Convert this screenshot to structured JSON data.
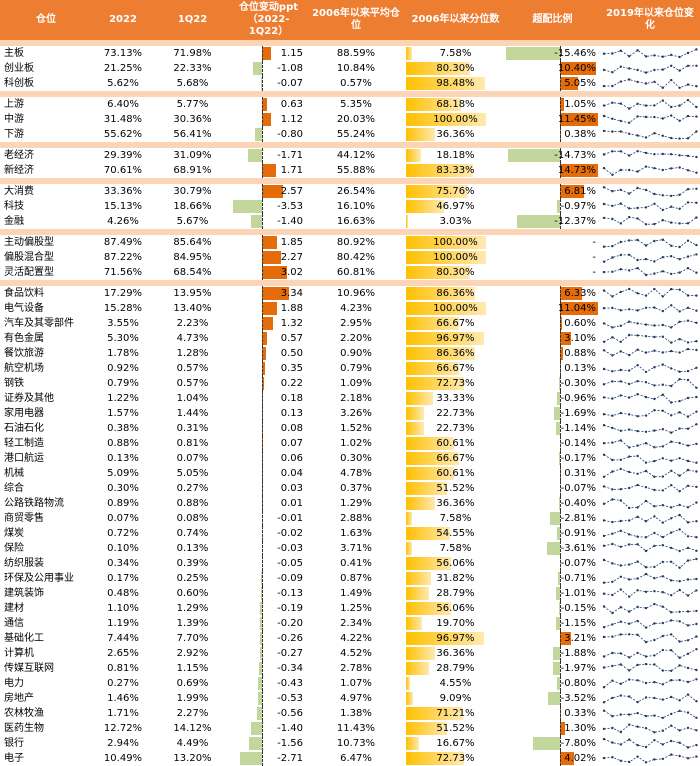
{
  "headers": [
    "仓位",
    "2022",
    "1Q22",
    "仓位变动ppt\n（2022-1Q22）",
    "2006年以来平均仓\n位",
    "2006年以来分位数",
    "超配比例",
    "2019年以来仓位变\n化"
  ],
  "colors": {
    "header": "#ED7D31",
    "separator": "#FBD5B5",
    "positive_bar": "#E46C0A",
    "negative_bar": "#C3D69B",
    "percentile_bar": "#FFC000",
    "sparkline": "#1F3864"
  },
  "chart_data": {
    "type": "table",
    "groups": [
      [
        {
          "name": "主板",
          "v2022": "73.13%",
          "v1q22": "71.98%",
          "chg": "1.15",
          "avg": "88.59%",
          "pct": "7.58%",
          "exc": "-15.46%"
        },
        {
          "name": "创业板",
          "v2022": "21.25%",
          "v1q22": "22.33%",
          "chg": "-1.08",
          "avg": "10.84%",
          "pct": "80.30%",
          "exc": "10.40%"
        },
        {
          "name": "科创板",
          "v2022": "5.62%",
          "v1q22": "5.68%",
          "chg": "-0.07",
          "avg": "0.57%",
          "pct": "98.48%",
          "exc": "5.05%"
        }
      ],
      [
        {
          "name": "上游",
          "v2022": "6.40%",
          "v1q22": "5.77%",
          "chg": "0.63",
          "avg": "5.35%",
          "pct": "68.18%",
          "exc": "1.05%"
        },
        {
          "name": "中游",
          "v2022": "31.48%",
          "v1q22": "30.36%",
          "chg": "1.12",
          "avg": "20.03%",
          "pct": "100.00%",
          "exc": "11.45%"
        },
        {
          "name": "下游",
          "v2022": "55.62%",
          "v1q22": "56.41%",
          "chg": "-0.80",
          "avg": "55.24%",
          "pct": "36.36%",
          "exc": "0.38%"
        }
      ],
      [
        {
          "name": "老经济",
          "v2022": "29.39%",
          "v1q22": "31.09%",
          "chg": "-1.71",
          "avg": "44.12%",
          "pct": "18.18%",
          "exc": "-14.73%"
        },
        {
          "name": "新经济",
          "v2022": "70.61%",
          "v1q22": "68.91%",
          "chg": "1.71",
          "avg": "55.88%",
          "pct": "83.33%",
          "exc": "14.73%"
        }
      ],
      [
        {
          "name": "大消费",
          "v2022": "33.36%",
          "v1q22": "30.79%",
          "chg": "2.57",
          "avg": "26.54%",
          "pct": "75.76%",
          "exc": "6.81%"
        },
        {
          "name": "科技",
          "v2022": "15.13%",
          "v1q22": "18.66%",
          "chg": "-3.53",
          "avg": "16.10%",
          "pct": "46.97%",
          "exc": "-0.97%"
        },
        {
          "name": "金融",
          "v2022": "4.26%",
          "v1q22": "5.67%",
          "chg": "-1.40",
          "avg": "16.63%",
          "pct": "3.03%",
          "exc": "-12.37%"
        }
      ],
      [
        {
          "name": "主动偏股型",
          "v2022": "87.49%",
          "v1q22": "85.64%",
          "chg": "1.85",
          "avg": "80.92%",
          "pct": "100.00%",
          "exc": "-"
        },
        {
          "name": "偏股混合型",
          "v2022": "87.22%",
          "v1q22": "84.95%",
          "chg": "2.27",
          "avg": "80.42%",
          "pct": "100.00%",
          "exc": "-"
        },
        {
          "name": "灵活配置型",
          "v2022": "71.56%",
          "v1q22": "68.54%",
          "chg": "3.02",
          "avg": "60.81%",
          "pct": "80.30%",
          "exc": "-"
        }
      ],
      [
        {
          "name": "食品饮料",
          "v2022": "17.29%",
          "v1q22": "13.95%",
          "chg": "3.34",
          "avg": "10.96%",
          "pct": "86.36%",
          "exc": "6.33%"
        },
        {
          "name": "电气设备",
          "v2022": "15.28%",
          "v1q22": "13.40%",
          "chg": "1.88",
          "avg": "4.23%",
          "pct": "100.00%",
          "exc": "11.04%"
        },
        {
          "name": "汽车及其零部件",
          "v2022": "3.55%",
          "v1q22": "2.23%",
          "chg": "1.32",
          "avg": "2.95%",
          "pct": "66.67%",
          "exc": "0.60%"
        },
        {
          "name": "有色金属",
          "v2022": "5.30%",
          "v1q22": "4.73%",
          "chg": "0.57",
          "avg": "2.20%",
          "pct": "96.97%",
          "exc": "3.10%"
        },
        {
          "name": "餐饮旅游",
          "v2022": "1.78%",
          "v1q22": "1.28%",
          "chg": "0.50",
          "avg": "0.90%",
          "pct": "86.36%",
          "exc": "0.88%"
        },
        {
          "name": "航空机场",
          "v2022": "0.92%",
          "v1q22": "0.57%",
          "chg": "0.35",
          "avg": "0.79%",
          "pct": "66.67%",
          "exc": "0.13%"
        },
        {
          "name": "钢铁",
          "v2022": "0.79%",
          "v1q22": "0.57%",
          "chg": "0.22",
          "avg": "1.09%",
          "pct": "72.73%",
          "exc": "-0.30%"
        },
        {
          "name": "证券及其他",
          "v2022": "1.22%",
          "v1q22": "1.04%",
          "chg": "0.18",
          "avg": "2.18%",
          "pct": "33.33%",
          "exc": "-0.96%"
        },
        {
          "name": "家用电器",
          "v2022": "1.57%",
          "v1q22": "1.44%",
          "chg": "0.13",
          "avg": "3.26%",
          "pct": "22.73%",
          "exc": "-1.69%"
        },
        {
          "name": "石油石化",
          "v2022": "0.38%",
          "v1q22": "0.31%",
          "chg": "0.08",
          "avg": "1.52%",
          "pct": "22.73%",
          "exc": "-1.14%"
        },
        {
          "name": "轻工制造",
          "v2022": "0.88%",
          "v1q22": "0.81%",
          "chg": "0.07",
          "avg": "1.02%",
          "pct": "60.61%",
          "exc": "-0.14%"
        },
        {
          "name": "港口航运",
          "v2022": "0.13%",
          "v1q22": "0.07%",
          "chg": "0.06",
          "avg": "0.30%",
          "pct": "66.67%",
          "exc": "-0.17%"
        },
        {
          "name": "机械",
          "v2022": "5.09%",
          "v1q22": "5.05%",
          "chg": "0.04",
          "avg": "4.78%",
          "pct": "60.61%",
          "exc": "0.31%"
        },
        {
          "name": "综合",
          "v2022": "0.30%",
          "v1q22": "0.27%",
          "chg": "0.03",
          "avg": "0.37%",
          "pct": "51.52%",
          "exc": "-0.07%"
        },
        {
          "name": "公路铁路物流",
          "v2022": "0.89%",
          "v1q22": "0.88%",
          "chg": "0.01",
          "avg": "1.29%",
          "pct": "36.36%",
          "exc": "-0.40%"
        },
        {
          "name": "商贸零售",
          "v2022": "0.07%",
          "v1q22": "0.08%",
          "chg": "-0.01",
          "avg": "2.88%",
          "pct": "7.58%",
          "exc": "-2.81%"
        },
        {
          "name": "煤炭",
          "v2022": "0.72%",
          "v1q22": "0.74%",
          "chg": "-0.02",
          "avg": "1.63%",
          "pct": "54.55%",
          "exc": "-0.91%"
        },
        {
          "name": "保险",
          "v2022": "0.10%",
          "v1q22": "0.13%",
          "chg": "-0.03",
          "avg": "3.71%",
          "pct": "7.58%",
          "exc": "-3.61%"
        },
        {
          "name": "纺织服装",
          "v2022": "0.34%",
          "v1q22": "0.39%",
          "chg": "-0.05",
          "avg": "0.41%",
          "pct": "56.06%",
          "exc": "-0.07%"
        },
        {
          "name": "环保及公用事业",
          "v2022": "0.17%",
          "v1q22": "0.25%",
          "chg": "-0.09",
          "avg": "0.87%",
          "pct": "31.82%",
          "exc": "-0.71%"
        },
        {
          "name": "建筑装饰",
          "v2022": "0.48%",
          "v1q22": "0.60%",
          "chg": "-0.13",
          "avg": "1.49%",
          "pct": "28.79%",
          "exc": "-1.01%"
        },
        {
          "name": "建材",
          "v2022": "1.10%",
          "v1q22": "1.29%",
          "chg": "-0.19",
          "avg": "1.25%",
          "pct": "56.06%",
          "exc": "-0.15%"
        },
        {
          "name": "通信",
          "v2022": "1.19%",
          "v1q22": "1.39%",
          "chg": "-0.20",
          "avg": "2.34%",
          "pct": "19.70%",
          "exc": "-1.15%"
        },
        {
          "name": "基础化工",
          "v2022": "7.44%",
          "v1q22": "7.70%",
          "chg": "-0.26",
          "avg": "4.22%",
          "pct": "96.97%",
          "exc": "3.21%"
        },
        {
          "name": "计算机",
          "v2022": "2.65%",
          "v1q22": "2.92%",
          "chg": "-0.27",
          "avg": "4.52%",
          "pct": "36.36%",
          "exc": "-1.88%"
        },
        {
          "name": "传媒互联网",
          "v2022": "0.81%",
          "v1q22": "1.15%",
          "chg": "-0.34",
          "avg": "2.78%",
          "pct": "28.79%",
          "exc": "-1.97%"
        },
        {
          "name": "电力",
          "v2022": "0.27%",
          "v1q22": "0.69%",
          "chg": "-0.43",
          "avg": "1.07%",
          "pct": "4.55%",
          "exc": "-0.80%"
        },
        {
          "name": "房地产",
          "v2022": "1.46%",
          "v1q22": "1.99%",
          "chg": "-0.53",
          "avg": "4.97%",
          "pct": "9.09%",
          "exc": "-3.52%"
        },
        {
          "name": "农林牧渔",
          "v2022": "1.71%",
          "v1q22": "2.27%",
          "chg": "-0.56",
          "avg": "1.38%",
          "pct": "71.21%",
          "exc": "0.33%"
        },
        {
          "name": "医药生物",
          "v2022": "12.72%",
          "v1q22": "14.12%",
          "chg": "-1.40",
          "avg": "11.43%",
          "pct": "51.52%",
          "exc": "1.30%"
        },
        {
          "name": "银行",
          "v2022": "2.94%",
          "v1q22": "4.49%",
          "chg": "-1.56",
          "avg": "10.73%",
          "pct": "16.67%",
          "exc": "-7.80%"
        },
        {
          "name": "电子",
          "v2022": "10.49%",
          "v1q22": "13.20%",
          "chg": "-2.71",
          "avg": "6.47%",
          "pct": "72.73%",
          "exc": "4.02%"
        }
      ]
    ]
  }
}
